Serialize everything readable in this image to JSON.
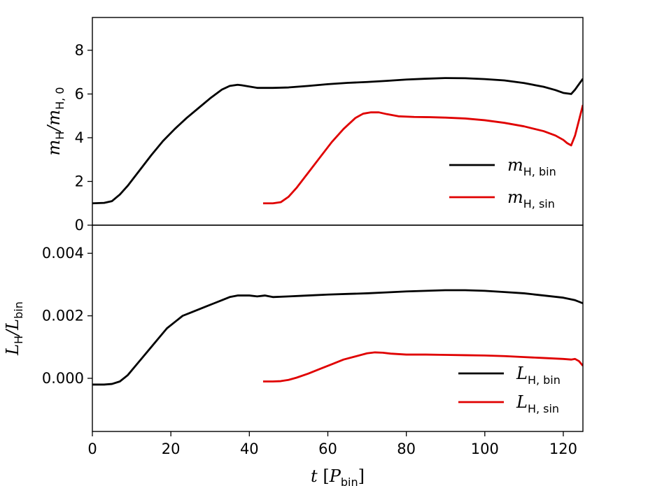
{
  "chart_data": [
    {
      "type": "line",
      "panel": "top",
      "ylabel": {
        "main": "m",
        "main_sub": "H",
        "sep": "/",
        "denom": "m",
        "denom_sub": "H, 0"
      },
      "xlim": [
        0,
        125
      ],
      "ylim": [
        0,
        9.5
      ],
      "yticks": [
        0,
        2,
        4,
        6,
        8
      ],
      "ytick_labels": [
        "0",
        "2",
        "4",
        "6",
        "8"
      ],
      "legend_position": "lower-right",
      "series": [
        {
          "name": "m_H,bin",
          "legend": {
            "main": "m",
            "sub": "H, bin"
          },
          "color": "#000000",
          "x": [
            0,
            3,
            5,
            7,
            9,
            12,
            15,
            18,
            21,
            24,
            27,
            30,
            33,
            35,
            37,
            38,
            40,
            42,
            44,
            46,
            50,
            55,
            60,
            65,
            70,
            75,
            80,
            85,
            90,
            95,
            100,
            105,
            110,
            115,
            118,
            120,
            122,
            123,
            124,
            125
          ],
          "y": [
            1.0,
            1.02,
            1.1,
            1.4,
            1.8,
            2.5,
            3.2,
            3.85,
            4.4,
            4.9,
            5.35,
            5.8,
            6.2,
            6.37,
            6.42,
            6.4,
            6.34,
            6.28,
            6.28,
            6.28,
            6.3,
            6.37,
            6.45,
            6.51,
            6.55,
            6.6,
            6.66,
            6.7,
            6.73,
            6.72,
            6.68,
            6.62,
            6.5,
            6.33,
            6.18,
            6.05,
            6.0,
            6.2,
            6.45,
            6.7
          ]
        },
        {
          "name": "m_H,sin",
          "legend": {
            "main": "m",
            "sub": "H, sin"
          },
          "color": "#e00000",
          "x": [
            43.5,
            46,
            48,
            50,
            52,
            55,
            58,
            61,
            64,
            67,
            69,
            71,
            73,
            75,
            78,
            82,
            86,
            90,
            95,
            100,
            105,
            110,
            115,
            118,
            120,
            121,
            122,
            123,
            124,
            125
          ],
          "y": [
            1.0,
            1.0,
            1.05,
            1.3,
            1.7,
            2.4,
            3.1,
            3.8,
            4.4,
            4.9,
            5.1,
            5.16,
            5.16,
            5.08,
            4.98,
            4.95,
            4.94,
            4.92,
            4.88,
            4.8,
            4.68,
            4.52,
            4.3,
            4.1,
            3.9,
            3.75,
            3.65,
            4.1,
            4.8,
            5.5
          ]
        }
      ]
    },
    {
      "type": "line",
      "panel": "bottom",
      "xlabel": {
        "main": "t",
        "open": "[",
        "inner": "P",
        "inner_sub": "bin",
        "close": "]"
      },
      "ylabel": {
        "main": "L",
        "main_sub": "H",
        "sep": "/",
        "denom": "L",
        "denom_sub": "bin"
      },
      "xlim": [
        0,
        125
      ],
      "ylim": [
        -0.0017,
        0.0049
      ],
      "yticks": [
        0.0,
        0.002,
        0.004
      ],
      "ytick_labels": [
        "0.000",
        "0.002",
        "0.004"
      ],
      "xticks": [
        0,
        20,
        40,
        60,
        80,
        100,
        120
      ],
      "xtick_labels": [
        "0",
        "20",
        "40",
        "60",
        "80",
        "100",
        "120"
      ],
      "legend_position": "lower-right",
      "series": [
        {
          "name": "L_H,bin",
          "legend": {
            "main": "L",
            "sub": "H, bin"
          },
          "color": "#000000",
          "x": [
            0,
            3,
            5,
            7,
            9,
            11,
            13,
            15,
            17,
            19,
            21,
            23,
            25,
            27,
            29,
            31,
            33,
            35,
            37,
            40,
            42,
            44,
            46,
            50,
            55,
            60,
            65,
            70,
            75,
            80,
            85,
            90,
            95,
            100,
            105,
            110,
            115,
            120,
            123,
            124,
            125
          ],
          "y": [
            -0.0002,
            -0.0002,
            -0.00018,
            -0.0001,
            0.0001,
            0.0004,
            0.0007,
            0.001,
            0.0013,
            0.0016,
            0.0018,
            0.002,
            0.0021,
            0.0022,
            0.0023,
            0.0024,
            0.0025,
            0.0026,
            0.00265,
            0.00265,
            0.00262,
            0.00265,
            0.0026,
            0.00262,
            0.00265,
            0.00268,
            0.0027,
            0.00272,
            0.00275,
            0.00278,
            0.0028,
            0.00282,
            0.00282,
            0.0028,
            0.00276,
            0.00272,
            0.00265,
            0.00258,
            0.0025,
            0.00245,
            0.0024
          ]
        },
        {
          "name": "L_H,sin",
          "legend": {
            "main": "L",
            "sub": "H, sin"
          },
          "color": "#e00000",
          "x": [
            43.5,
            46,
            48,
            50,
            52,
            55,
            58,
            61,
            64,
            67,
            70,
            72,
            74,
            76,
            80,
            85,
            90,
            95,
            100,
            105,
            110,
            115,
            120,
            122,
            123,
            124,
            125
          ],
          "y": [
            -0.0001,
            -0.0001,
            -9e-05,
            -5e-05,
            2e-05,
            0.00015,
            0.0003,
            0.00045,
            0.0006,
            0.0007,
            0.0008,
            0.00083,
            0.00082,
            0.00079,
            0.00076,
            0.00076,
            0.00075,
            0.00074,
            0.00073,
            0.00071,
            0.00068,
            0.00065,
            0.00062,
            0.0006,
            0.00062,
            0.00055,
            0.0004
          ]
        }
      ]
    }
  ]
}
